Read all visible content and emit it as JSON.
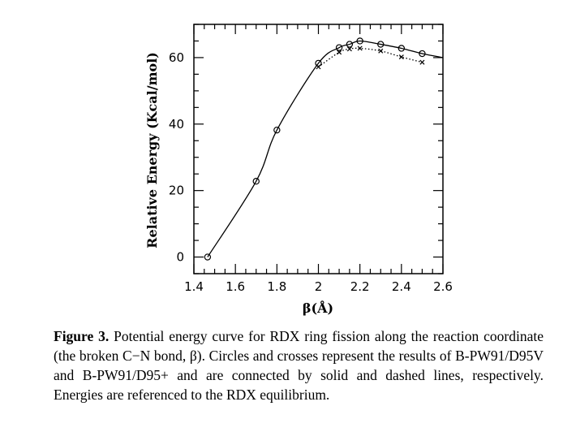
{
  "chart_data": {
    "type": "line",
    "xlabel": "β(Å)",
    "ylabel": "Relative Energy (Kcal/mol)",
    "xlim": [
      1.4,
      2.6
    ],
    "ylim": [
      -5,
      70
    ],
    "x_ticks": [
      1.4,
      1.6,
      1.8,
      2.0,
      2.2,
      2.4,
      2.6
    ],
    "x_tick_labels": [
      "1.4",
      "1.6",
      "1.8",
      "2",
      "2.2",
      "2.4",
      "2.6"
    ],
    "y_ticks": [
      0,
      20,
      40,
      60
    ],
    "y_tick_labels": [
      "0",
      "20",
      "40",
      "60"
    ],
    "series": [
      {
        "name": "B-PW91/D95V",
        "marker": "circle",
        "line": "solid",
        "x": [
          1.466,
          1.7,
          1.8,
          2.0,
          2.1,
          2.15,
          2.2,
          2.3,
          2.4,
          2.5
        ],
        "y": [
          0.0,
          22.8,
          38.2,
          58.3,
          63.0,
          64.0,
          65.0,
          64.0,
          62.8,
          61.2
        ]
      },
      {
        "name": "B-PW91/D95+",
        "marker": "cross",
        "line": "dotted",
        "x": [
          2.0,
          2.1,
          2.15,
          2.2,
          2.3,
          2.4,
          2.5
        ],
        "y": [
          57.2,
          61.6,
          62.6,
          62.8,
          62.0,
          60.2,
          58.6
        ]
      }
    ],
    "solid_curve_extends_to": [
      2.6,
      60.0
    ],
    "grid": false,
    "legend": "none"
  },
  "caption": {
    "label": "Figure 3.",
    "text": "Potential energy curve for RDX ring fission along the reaction coordinate (the broken C−N bond, β). Circles and crosses represent the results of B-PW91/D95V and B-PW91/D95+ and are connected by solid and dashed lines, respectively. Energies are referenced to the RDX equilibrium."
  }
}
